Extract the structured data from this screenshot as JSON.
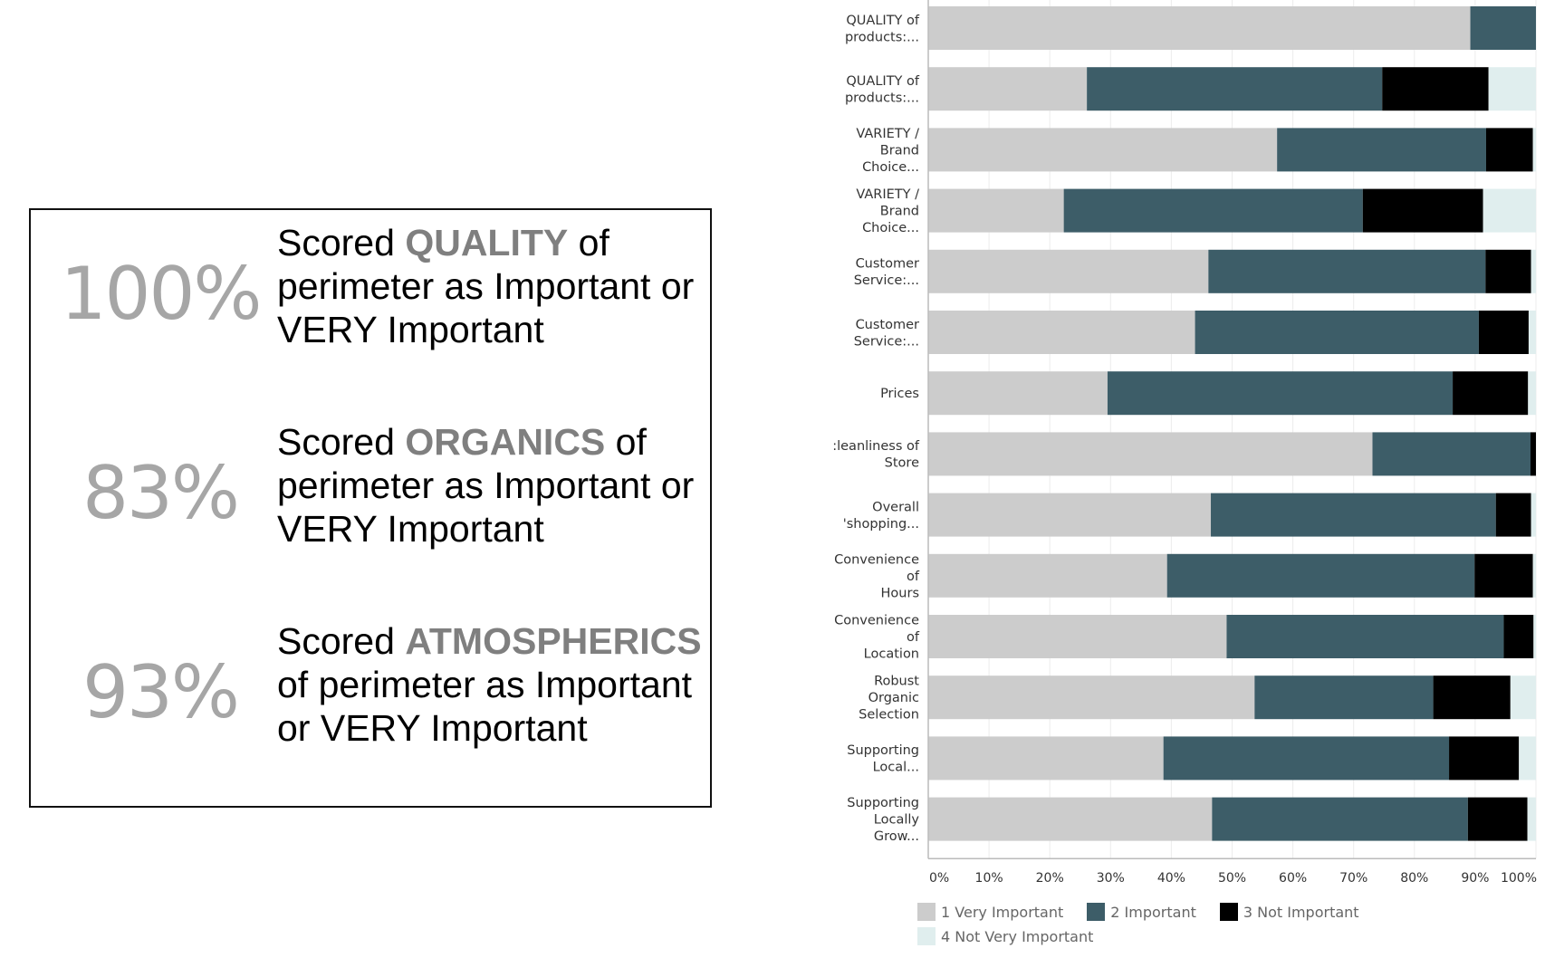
{
  "stats": [
    {
      "pct": "100%",
      "pre": "Scored ",
      "kw": "QUALITY",
      "post": " of perimeter as Important or VERY Important"
    },
    {
      "pct": "83%",
      "pre": "Scored ",
      "kw": "ORGANICS",
      "post": " of perimeter as Important or VERY Important"
    },
    {
      "pct": "93%",
      "pre": "Scored ",
      "kw": "ATMOSPHERICS",
      "post": " of perimeter as Important or VERY Important"
    }
  ],
  "chart_data": {
    "type": "bar",
    "orientation": "horizontal",
    "stacked": true,
    "categories": [
      [
        "QUALITY of",
        "products:..."
      ],
      [
        "QUALITY of",
        "products:..."
      ],
      [
        "VARIETY /",
        "Brand",
        "Choice..."
      ],
      [
        "VARIETY /",
        "Brand",
        "Choice..."
      ],
      [
        "Customer",
        "Service:..."
      ],
      [
        "Customer",
        "Service:..."
      ],
      [
        "Prices"
      ],
      [
        ":leanliness of",
        "Store"
      ],
      [
        "Overall",
        "'shopping..."
      ],
      [
        "Convenience",
        "of",
        "Hours"
      ],
      [
        "Convenience",
        "of",
        "Location"
      ],
      [
        "Robust",
        "Organic",
        "Selection"
      ],
      [
        "Supporting",
        "Local..."
      ],
      [
        "Supporting",
        "Locally",
        "Grow..."
      ]
    ],
    "series": [
      {
        "name": "1 Very Important",
        "color": "#cccccc",
        "values": [
          89.2,
          26.1,
          57.4,
          22.3,
          46.1,
          43.9,
          29.5,
          73.1,
          46.5,
          39.3,
          49.1,
          53.7,
          38.7,
          46.7
        ]
      },
      {
        "name": "2 Important",
        "color": "#3d5d68",
        "values": [
          10.8,
          48.6,
          34.4,
          49.2,
          45.6,
          46.7,
          56.8,
          26.0,
          46.9,
          50.6,
          45.6,
          29.4,
          47.0,
          42.1
        ]
      },
      {
        "name": "3 Not Important",
        "color": "#000000",
        "values": [
          0,
          17.5,
          7.7,
          19.8,
          7.5,
          8.2,
          12.4,
          0.9,
          5.8,
          9.6,
          4.9,
          12.7,
          11.5,
          9.8
        ]
      },
      {
        "name": "4 Not Very Important",
        "color": "#e0eeee",
        "values": [
          0,
          7.8,
          0.5,
          8.7,
          0.8,
          1.2,
          1.3,
          0,
          0.8,
          0.5,
          0.4,
          4.2,
          2.8,
          1.4
        ]
      }
    ],
    "xticks": [
      "0%",
      "10%",
      "20%",
      "30%",
      "40%",
      "50%",
      "60%",
      "70%",
      "80%",
      "90%",
      "100%"
    ],
    "xlim": [
      0,
      100
    ],
    "grid": true,
    "legend_position": "bottom-left"
  }
}
